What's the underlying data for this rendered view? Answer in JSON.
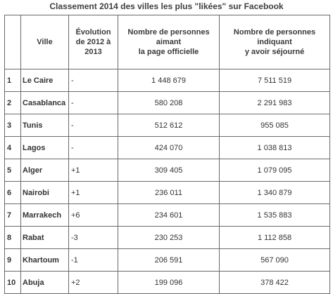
{
  "title": "Classement 2014 des villes les plus \"likées\" sur Facebook",
  "headers": {
    "rank": "",
    "city": "Ville",
    "evolution": "Évolution\nde 2012 à\n2013",
    "fans": "Nombre de personnes\naimant\nla page officielle",
    "visitors": "Nombre de personnes\nindiquant\ny avoir séjourné"
  },
  "rows": [
    {
      "rank": "1",
      "city": "Le Caire",
      "evolution": "-",
      "fans": "1 448 679",
      "visitors": "7 511 519"
    },
    {
      "rank": "2",
      "city": "Casablanca",
      "evolution": "-",
      "fans": "580 208",
      "visitors": "2 291 983"
    },
    {
      "rank": "3",
      "city": "Tunis",
      "evolution": "-",
      "fans": "512 612",
      "visitors": "955 085"
    },
    {
      "rank": "4",
      "city": "Lagos",
      "evolution": "-",
      "fans": "424 070",
      "visitors": "1 038 813"
    },
    {
      "rank": "5",
      "city": "Alger",
      "evolution": "+1",
      "fans": "309 405",
      "visitors": "1 079 095"
    },
    {
      "rank": "6",
      "city": "Nairobi",
      "evolution": "+1",
      "fans": "236 011",
      "visitors": "1 340 879"
    },
    {
      "rank": "7",
      "city": "Marrakech",
      "evolution": "+6",
      "fans": "234 601",
      "visitors": "1 535 883"
    },
    {
      "rank": "8",
      "city": "Rabat",
      "evolution": "-3",
      "fans": "230 253",
      "visitors": "1 112 858"
    },
    {
      "rank": "9",
      "city": "Khartoum",
      "evolution": "-1",
      "fans": "206 591",
      "visitors": "567 090"
    },
    {
      "rank": "10",
      "city": "Abuja",
      "evolution": "+2",
      "fans": "199 096",
      "visitors": "378 422"
    }
  ]
}
